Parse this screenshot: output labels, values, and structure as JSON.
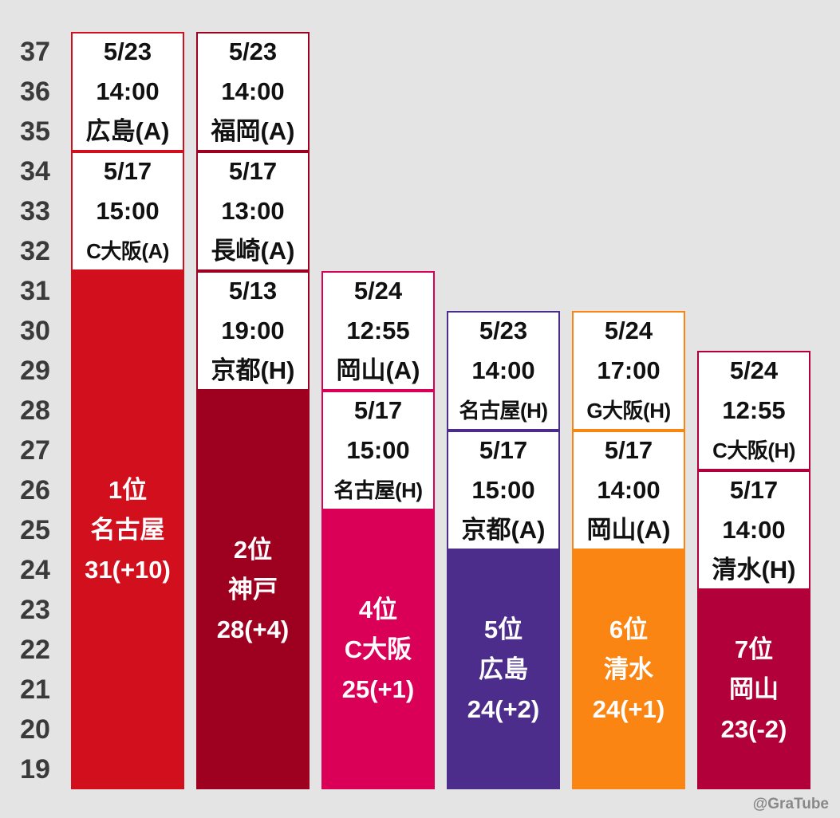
{
  "chart_data": {
    "type": "bar",
    "y_ticks": [
      37,
      36,
      35,
      34,
      33,
      32,
      31,
      30,
      29,
      28,
      27,
      26,
      25,
      24,
      23,
      22,
      21,
      20,
      19
    ],
    "ylim": [
      19,
      37
    ],
    "teams": [
      {
        "rank": "1位",
        "name": "名古屋",
        "points_label": "31(+10)",
        "points": 31,
        "color": "#d20f1c",
        "matches": [
          {
            "date": "5/17",
            "time": "15:00",
            "opponent": "C大阪(A)"
          },
          {
            "date": "5/23",
            "time": "14:00",
            "opponent": "広島(A)"
          }
        ]
      },
      {
        "rank": "2位",
        "name": "神戸",
        "points_label": "28(+4)",
        "points": 28,
        "color": "#9e0020",
        "matches": [
          {
            "date": "5/13",
            "time": "19:00",
            "opponent": "京都(H)"
          },
          {
            "date": "5/17",
            "time": "13:00",
            "opponent": "長崎(A)"
          },
          {
            "date": "5/23",
            "time": "14:00",
            "opponent": "福岡(A)"
          }
        ]
      },
      {
        "rank": "4位",
        "name": "C大阪",
        "points_label": "25(+1)",
        "points": 25,
        "color": "#da0057",
        "matches": [
          {
            "date": "5/17",
            "time": "15:00",
            "opponent": "名古屋(H)"
          },
          {
            "date": "5/24",
            "time": "12:55",
            "opponent": "岡山(A)"
          }
        ]
      },
      {
        "rank": "5位",
        "name": "広島",
        "points_label": "24(+2)",
        "points": 24,
        "color": "#4c2d8c",
        "matches": [
          {
            "date": "5/17",
            "time": "15:00",
            "opponent": "京都(A)"
          },
          {
            "date": "5/23",
            "time": "14:00",
            "opponent": "名古屋(H)"
          }
        ]
      },
      {
        "rank": "6位",
        "name": "清水",
        "points_label": "24(+1)",
        "points": 24,
        "color": "#fa8512",
        "matches": [
          {
            "date": "5/17",
            "time": "14:00",
            "opponent": "岡山(A)"
          },
          {
            "date": "5/24",
            "time": "17:00",
            "opponent": "G大阪(H)"
          }
        ]
      },
      {
        "rank": "7位",
        "name": "岡山",
        "points_label": "23(-2)",
        "points": 23,
        "color": "#b1003a",
        "matches": [
          {
            "date": "5/17",
            "time": "14:00",
            "opponent": "清水(H)"
          },
          {
            "date": "5/24",
            "time": "12:55",
            "opponent": "C大阪(H)"
          }
        ]
      }
    ]
  },
  "watermark": "@GraTube"
}
